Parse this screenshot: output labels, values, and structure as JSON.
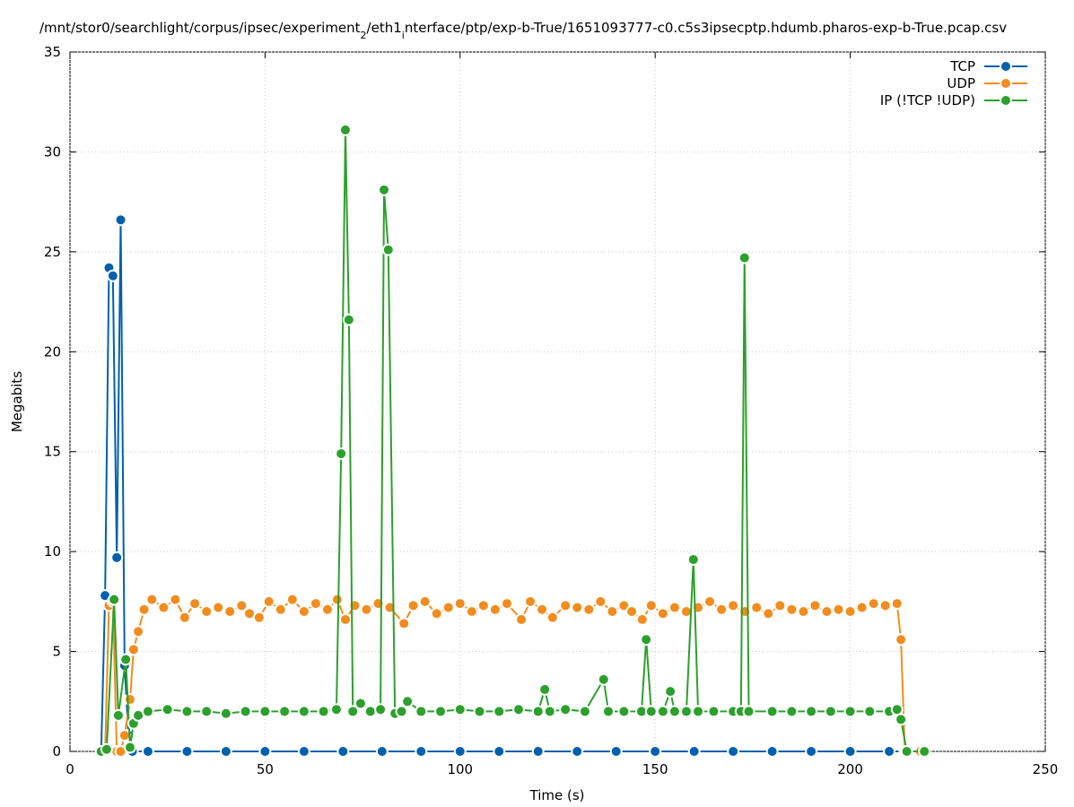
{
  "chart_data": {
    "type": "line",
    "title_parts": [
      "/mnt/stor0/searchlight/corpus/ipsec/experiment",
      "2",
      "/eth1",
      "i",
      "nterface/ptp/exp-b-True/1651093777-c0.c5s3ipsecptp.hdumb.pharos-exp-b-True.pcap.csv"
    ],
    "xlabel": "Time (s)",
    "ylabel": "Megabits",
    "xlim": [
      0,
      250
    ],
    "xticks": [
      0,
      50,
      100,
      150,
      200,
      250
    ],
    "ylim": [
      0,
      35
    ],
    "yticks": [
      0,
      5,
      10,
      15,
      20,
      25,
      30,
      35
    ],
    "grid": true,
    "legend": "top-right",
    "series": [
      {
        "name": "TCP",
        "color": "#0060ad",
        "x": [
          8,
          9,
          10,
          11,
          12,
          13,
          14,
          15,
          16,
          20,
          30,
          40,
          50,
          60,
          70,
          80,
          90,
          100,
          110,
          120,
          130,
          140,
          150,
          160,
          170,
          180,
          190,
          200,
          210,
          218
        ],
        "values": [
          0,
          7.8,
          24.2,
          23.8,
          9.7,
          26.6,
          4.3,
          0.8,
          0,
          0,
          0,
          0,
          0,
          0,
          0,
          0,
          0,
          0,
          0,
          0,
          0,
          0,
          0,
          0,
          0,
          0,
          0,
          0,
          0,
          0
        ]
      },
      {
        "name": "UDP",
        "color": "#f28c1e",
        "x": [
          8,
          9,
          10,
          11,
          12,
          13,
          14,
          15.4,
          16.3,
          17.5,
          19,
          21,
          24,
          27,
          29.4,
          32,
          35,
          38,
          41,
          44,
          46,
          48.5,
          51,
          54,
          57,
          60,
          63,
          66,
          68.5,
          70.6,
          73,
          76,
          79,
          82,
          85.6,
          88,
          91,
          94,
          97,
          100,
          103,
          106,
          109,
          112,
          115.7,
          118,
          121,
          123.7,
          127,
          130,
          133,
          136,
          139,
          142,
          144,
          146.7,
          149,
          152,
          155,
          158,
          161,
          164,
          167,
          170,
          173,
          176,
          179,
          182,
          185,
          188,
          191,
          194,
          197,
          200,
          203,
          206,
          209,
          212,
          213,
          214,
          218
        ],
        "values": [
          0,
          0,
          7.3,
          7.5,
          0,
          0,
          0.8,
          2.6,
          5.1,
          6.0,
          7.1,
          7.6,
          7.2,
          7.6,
          6.7,
          7.4,
          7.0,
          7.2,
          7.0,
          7.3,
          6.9,
          6.7,
          7.5,
          7.1,
          7.6,
          7.0,
          7.4,
          7.1,
          7.6,
          6.6,
          7.3,
          7.1,
          7.4,
          7.2,
          6.4,
          7.3,
          7.5,
          6.9,
          7.2,
          7.4,
          7.0,
          7.3,
          7.1,
          7.4,
          6.6,
          7.5,
          7.1,
          6.7,
          7.3,
          7.2,
          7.1,
          7.5,
          7.0,
          7.3,
          7.0,
          6.6,
          7.3,
          6.9,
          7.2,
          7.0,
          7.2,
          7.5,
          7.1,
          7.3,
          7.0,
          7.2,
          6.9,
          7.3,
          7.1,
          7.0,
          7.3,
          7.0,
          7.1,
          7.0,
          7.2,
          7.4,
          7.3,
          7.4,
          5.6,
          0,
          0
        ]
      },
      {
        "name": "IP (!TCP  !UDP)",
        "color": "#2ca02c",
        "x": [
          8,
          9.4,
          11.3,
          12.4,
          14.3,
          15.4,
          16.3,
          17.5,
          20,
          25,
          30,
          35,
          40,
          45,
          50,
          55,
          60,
          65,
          68.3,
          69.5,
          70.6,
          71.5,
          72.5,
          74.5,
          77,
          79.6,
          80.5,
          81.6,
          83.3,
          85,
          86.5,
          90,
          95,
          100,
          105,
          110,
          115,
          120,
          121.7,
          123,
          127,
          132,
          136.8,
          138,
          142,
          146.5,
          147.7,
          149,
          152,
          153.9,
          155,
          158,
          159.8,
          161,
          165,
          170,
          172,
          172.9,
          174,
          180,
          185,
          190,
          195,
          200,
          205,
          210,
          212,
          213,
          214.5,
          219
        ],
        "values": [
          0,
          0.1,
          7.6,
          1.8,
          4.6,
          0.2,
          1.4,
          1.8,
          2.0,
          2.1,
          2.0,
          2.0,
          1.9,
          2.0,
          2.0,
          2.0,
          2.0,
          2.0,
          2.1,
          14.9,
          31.1,
          21.6,
          2.0,
          2.4,
          2.0,
          2.1,
          28.1,
          25.1,
          1.9,
          2.0,
          2.5,
          2.0,
          2.0,
          2.1,
          2.0,
          2.0,
          2.1,
          2.0,
          3.1,
          2.0,
          2.1,
          2.0,
          3.6,
          2.0,
          2.0,
          2.0,
          5.6,
          2.0,
          2.0,
          3.0,
          2.0,
          2.0,
          9.6,
          2.0,
          2.0,
          2.0,
          2.0,
          24.7,
          2.0,
          2.0,
          2.0,
          2.0,
          2.0,
          2.0,
          2.0,
          2.0,
          2.1,
          1.6,
          0,
          0
        ]
      }
    ]
  }
}
